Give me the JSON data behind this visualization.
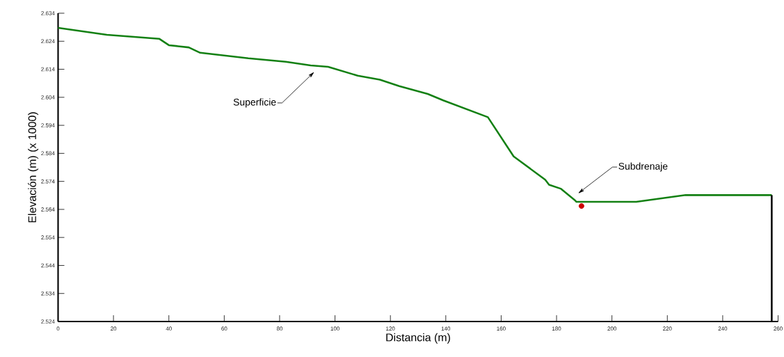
{
  "chart_data": {
    "type": "line",
    "xlabel": "Distancia (m)",
    "ylabel": "Elevación (m) (x 1000)",
    "xlim": [
      0,
      260
    ],
    "ylim": [
      2.524,
      2.634
    ],
    "xticks": [
      0,
      20,
      40,
      60,
      80,
      100,
      120,
      140,
      160,
      180,
      200,
      220,
      240,
      260
    ],
    "yticks": [
      2.524,
      2.534,
      2.544,
      2.554,
      2.564,
      2.574,
      2.584,
      2.594,
      2.604,
      2.614,
      2.624,
      2.634
    ],
    "grid": false,
    "legend": false,
    "series": [
      {
        "color": "#138013",
        "x": [
          0,
          17.6,
          36.5,
          40.0,
          47.2,
          51.3,
          68.7,
          82.2,
          91.2,
          97.5,
          108.2,
          116.2,
          123.2,
          133.5,
          139.1,
          155.2,
          164.5,
          175.9,
          177.3,
          181.5,
          186.7,
          187.2,
          208.8,
          226.6,
          257.7
        ],
        "values": [
          2.6288,
          2.6263,
          2.6249,
          2.6226,
          2.6218,
          2.6199,
          2.6179,
          2.6167,
          2.6154,
          2.6149,
          2.6117,
          2.6103,
          2.608,
          2.6052,
          2.6029,
          2.5969,
          2.5829,
          2.5746,
          2.5728,
          2.5714,
          2.5672,
          2.5667,
          2.5667,
          2.5691,
          2.5691
        ]
      },
      {
        "color": "#000000",
        "x": [
          257.7,
          257.7
        ],
        "values": [
          2.5691,
          2.524
        ]
      },
      {
        "type": "scatter",
        "color": "#cc0000",
        "marker": "circle",
        "x": [
          189.0
        ],
        "values": [
          2.5652
        ]
      }
    ],
    "annotations": [
      "Superficie",
      "Subdrenaje"
    ]
  }
}
